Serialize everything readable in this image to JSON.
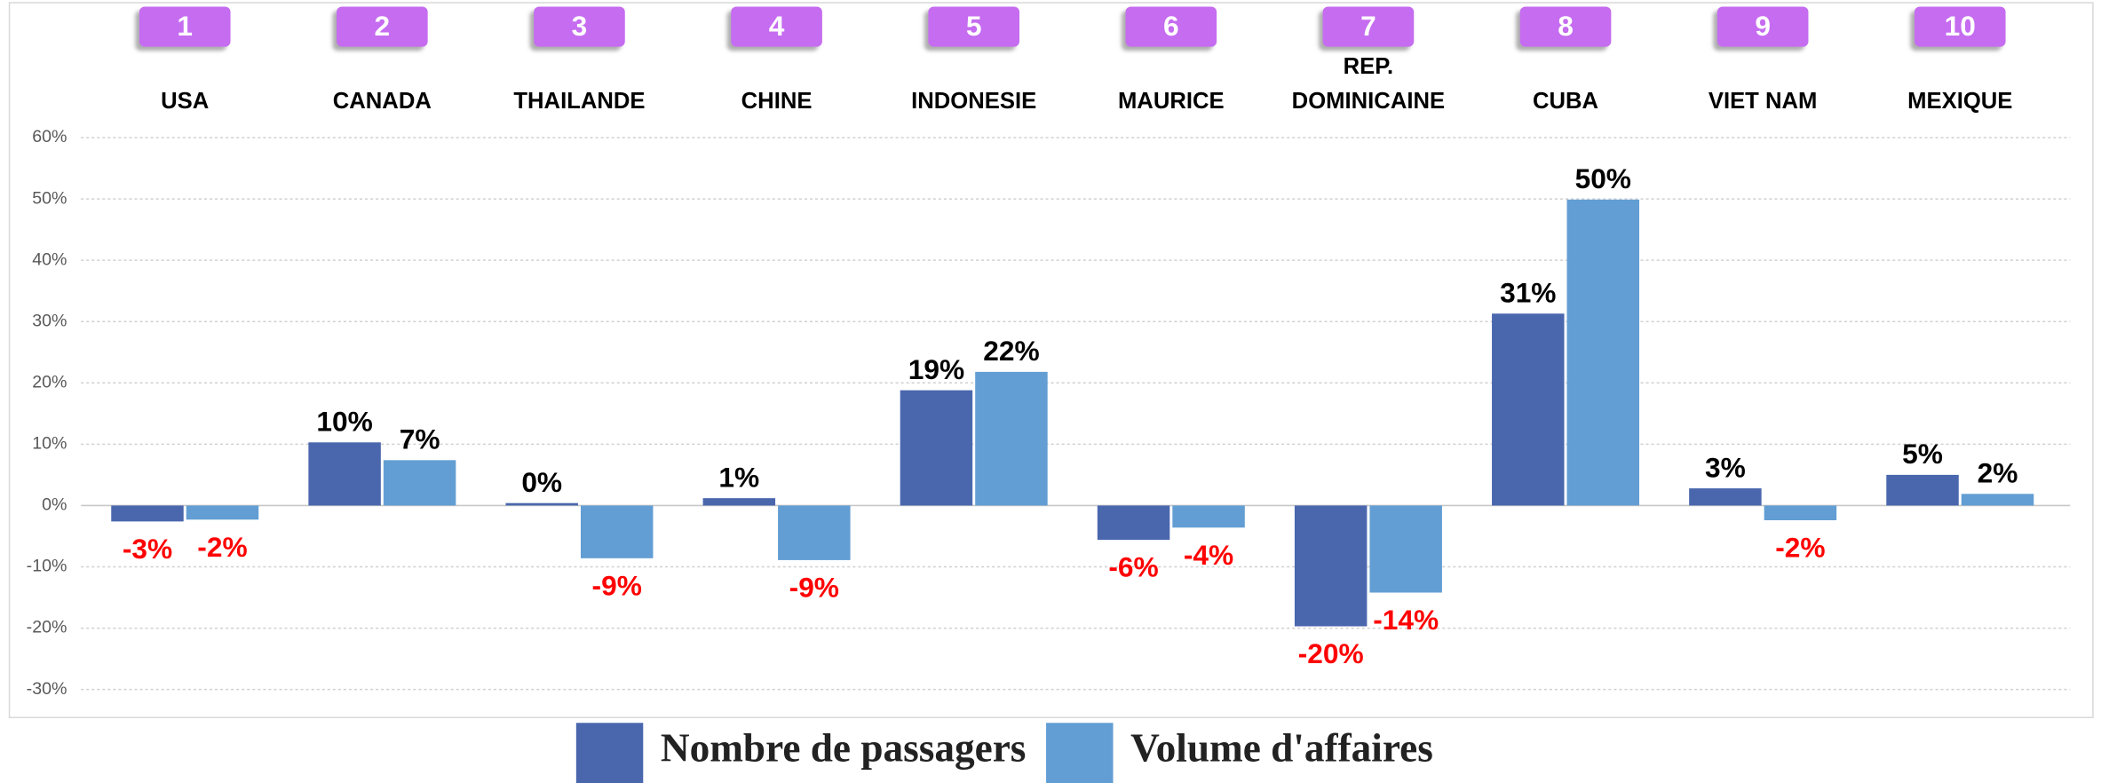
{
  "chart_data": {
    "type": "bar",
    "ranks": [
      "1",
      "2",
      "3",
      "4",
      "5",
      "6",
      "7",
      "8",
      "9",
      "10"
    ],
    "categories": [
      "USA",
      "CANADA",
      "THAILANDE",
      "CHINE",
      "INDONESIE",
      "MAURICE",
      "REP. DOMINICAINE",
      "CUBA",
      "VIET NAM",
      "MEXIQUE"
    ],
    "series": [
      {
        "name": "Nombre de passagers",
        "color": "#4a67ae",
        "values": [
          -2.6,
          10.3,
          0.4,
          1.2,
          18.8,
          -5.6,
          -19.7,
          31.3,
          2.8,
          5.0
        ],
        "value_labels": [
          "-3%",
          "10%",
          "0%",
          "1%",
          "19%",
          "-6%",
          "-20%",
          "31%",
          "3%",
          "5%"
        ]
      },
      {
        "name": "Volume d'affaires",
        "color": "#629ed3",
        "values": [
          -2.3,
          7.4,
          -8.6,
          -8.9,
          21.8,
          -3.6,
          -14.2,
          49.9,
          -2.4,
          1.9
        ],
        "value_labels": [
          "-2%",
          "7%",
          "-9%",
          "-9%",
          "22%",
          "-4%",
          "-14%",
          "50%",
          "-2%",
          "2%"
        ]
      }
    ],
    "ylim": [
      -30,
      60
    ],
    "yticks": [
      {
        "value": -30,
        "label": "-30%"
      },
      {
        "value": -20,
        "label": "-20%"
      },
      {
        "value": -10,
        "label": "-10%"
      },
      {
        "value": 0,
        "label": "0%"
      },
      {
        "value": 10,
        "label": "10%"
      },
      {
        "value": 20,
        "label": "20%"
      },
      {
        "value": 30,
        "label": "30%"
      },
      {
        "value": 40,
        "label": "40%"
      },
      {
        "value": 50,
        "label": "50%"
      },
      {
        "value": 60,
        "label": "60%"
      }
    ],
    "grid": true,
    "legend": "bottom",
    "rank_badge_color": "#c56cf0",
    "positive_label_color": "#000000",
    "negative_label_color": "#ff0000"
  }
}
